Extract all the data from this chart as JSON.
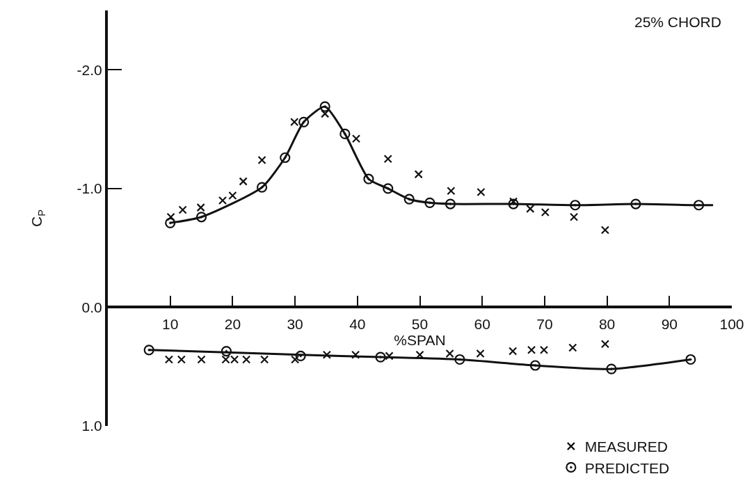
{
  "chart_data": {
    "type": "scatter",
    "xlabel": "%SPAN",
    "ylabel": "C$_{P}$",
    "annotations": [
      "25% CHORD"
    ],
    "xlim": [
      0,
      100
    ],
    "xticks": [
      10,
      20,
      30,
      40,
      50,
      60,
      70,
      80,
      90,
      100
    ],
    "ylim": [
      1.0,
      -2.5
    ],
    "yticks": [
      {
        "value": -2,
        "label": "-2.0"
      },
      {
        "value": -1,
        "label": "-1.0"
      },
      {
        "value": 0,
        "label": "0.0"
      },
      {
        "value": 1,
        "label": "1.0"
      }
    ],
    "grid": false,
    "legend": "bottom right",
    "series": [
      {
        "name": "MEASURED",
        "marker": "cross",
        "color": "#111111",
        "x": [
          10.1,
          12,
          14.9,
          18.4,
          20,
          21.7,
          24.7,
          29.9,
          34.8,
          39.8,
          44.9,
          49.8,
          55,
          59.8,
          65,
          67.7,
          70.1,
          74.7,
          79.7,
          9.8,
          11.8,
          15,
          18.9,
          20.3,
          22.2,
          25.1,
          30,
          35.1,
          39.7,
          45.1,
          50,
          54.8,
          59.7,
          64.9,
          67.9,
          69.9,
          74.5,
          79.7
        ],
        "values": [
          -0.76,
          -0.82,
          -0.84,
          -0.9,
          -0.94,
          -1.06,
          -1.24,
          -1.56,
          -1.63,
          -1.42,
          -1.25,
          -1.12,
          -0.98,
          -0.97,
          -0.89,
          -0.83,
          -0.8,
          -0.76,
          -0.65,
          0.44,
          0.44,
          0.44,
          0.44,
          0.44,
          0.44,
          0.44,
          0.44,
          0.4,
          0.4,
          0.41,
          0.4,
          0.39,
          0.39,
          0.37,
          0.36,
          0.36,
          0.34,
          0.31
        ]
      },
      {
        "name": "PREDICTED",
        "marker": "circle",
        "color": "#111111",
        "x": [
          10,
          15,
          24.7,
          28.4,
          31.4,
          34.8,
          38,
          41.8,
          44.9,
          48.3,
          51.6,
          54.9,
          65,
          74.9,
          84.6,
          94.7,
          6.6,
          19,
          30.9,
          43.7,
          56.4,
          68.5,
          80.7,
          93.4
        ],
        "values": [
          -0.71,
          -0.76,
          -1.01,
          -1.26,
          -1.56,
          -1.69,
          -1.46,
          -1.08,
          -1.0,
          -0.91,
          -0.88,
          -0.87,
          -0.87,
          -0.86,
          -0.87,
          -0.86,
          0.36,
          0.37,
          0.41,
          0.42,
          0.44,
          0.49,
          0.52,
          0.44
        ]
      },
      {
        "type": "line",
        "marker": "none",
        "line_style": "solid",
        "color": "#111111",
        "x": [
          10,
          15,
          24.7,
          28.4,
          31.4,
          34.8,
          38,
          41.8,
          44.9,
          48.3,
          51.6,
          54.9,
          65,
          74.9,
          84.6,
          94.7,
          97
        ],
        "values": [
          -0.71,
          -0.76,
          -1.01,
          -1.26,
          -1.56,
          -1.69,
          -1.46,
          -1.08,
          -1.0,
          -0.91,
          -0.88,
          -0.87,
          -0.87,
          -0.86,
          -0.87,
          -0.86,
          -0.86
        ]
      },
      {
        "type": "line",
        "marker": "none",
        "line_style": "solid",
        "color": "#111111",
        "x": [
          6.6,
          19,
          30.9,
          43.7,
          56.4,
          68.5,
          80.7,
          93.4
        ],
        "values": [
          0.36,
          0.38,
          0.4,
          0.42,
          0.44,
          0.49,
          0.52,
          0.44
        ]
      }
    ]
  }
}
